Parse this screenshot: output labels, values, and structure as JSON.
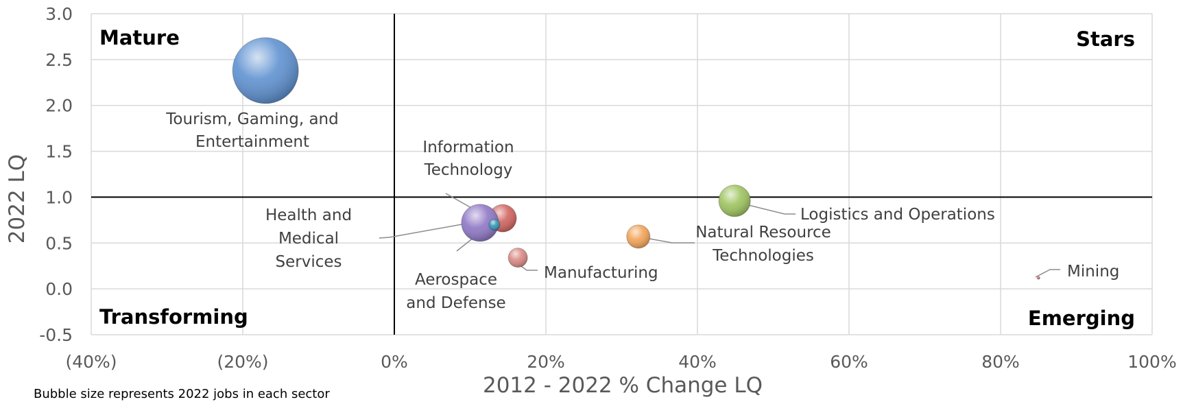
{
  "chart_data": {
    "type": "bubble",
    "xlabel": "2012 - 2022 % Change LQ",
    "ylabel": "2022 LQ",
    "xlim": [
      -0.4,
      1.0
    ],
    "ylim": [
      -0.5,
      3.0
    ],
    "x_ticks": [
      {
        "value": -0.4,
        "label": "(40%)",
        "color": "#ff0000"
      },
      {
        "value": -0.2,
        "label": "(20%)",
        "color": "#ff0000"
      },
      {
        "value": 0.0,
        "label": "0%",
        "color": "#595959"
      },
      {
        "value": 0.2,
        "label": "20%",
        "color": "#595959"
      },
      {
        "value": 0.4,
        "label": "40%",
        "color": "#595959"
      },
      {
        "value": 0.6,
        "label": "60%",
        "color": "#595959"
      },
      {
        "value": 0.8,
        "label": "80%",
        "color": "#595959"
      },
      {
        "value": 1.0,
        "label": "100%",
        "color": "#595959"
      }
    ],
    "y_ticks": [
      {
        "value": 3.0,
        "label": "3.0"
      },
      {
        "value": 2.5,
        "label": "2.5"
      },
      {
        "value": 2.0,
        "label": "2.0"
      },
      {
        "value": 1.5,
        "label": "1.5"
      },
      {
        "value": 1.0,
        "label": "1.0"
      },
      {
        "value": 0.5,
        "label": "0.5"
      },
      {
        "value": 0.0,
        "label": "0.0"
      },
      {
        "value": -0.5,
        "label": "-0.5"
      }
    ],
    "grid": true,
    "reference_lines": {
      "x": 0.0,
      "y": 1.0
    },
    "quadrants": [
      {
        "label": "Mature",
        "position": "top-left"
      },
      {
        "label": "Stars",
        "position": "top-right"
      },
      {
        "label": "Transforming",
        "position": "bottom-left"
      },
      {
        "label": "Emerging",
        "position": "bottom-right"
      }
    ],
    "series": [
      {
        "name": "Tourism, Gaming, and Entertainment",
        "label_lines": [
          "Tourism, Gaming, and",
          "Entertainment"
        ],
        "x": -0.17,
        "y": 2.38,
        "size": 48,
        "color": "#5b8fd0"
      },
      {
        "name": "Information Technology",
        "label_lines": [
          "Information",
          "Technology"
        ],
        "x": 0.143,
        "y": 0.77,
        "size": 20,
        "color": "#d0605c"
      },
      {
        "name": "Health and Medical Services",
        "label_lines": [
          "Health and",
          "Medical",
          "Services"
        ],
        "x": 0.113,
        "y": 0.72,
        "size": 27,
        "color": "#8c74c4"
      },
      {
        "name": "Aerospace and Defense",
        "label_lines": [
          "Aerospace",
          "and Defense"
        ],
        "x": 0.132,
        "y": 0.7,
        "size": 8,
        "color": "#2e8fb3"
      },
      {
        "name": "Manufacturing",
        "label_lines": [
          "Manufacturing"
        ],
        "x": 0.163,
        "y": 0.34,
        "size": 14,
        "color": "#d8857f"
      },
      {
        "name": "Natural Resource Technologies",
        "label_lines": [
          "Natural Resource",
          "Technologies"
        ],
        "x": 0.322,
        "y": 0.57,
        "size": 17,
        "color": "#f2a152"
      },
      {
        "name": "Logistics and Operations",
        "label_lines": [
          "Logistics and Operations"
        ],
        "x": 0.449,
        "y": 0.96,
        "size": 23,
        "color": "#9bc25a"
      },
      {
        "name": "Mining",
        "label_lines": [
          "Mining"
        ],
        "x": 0.85,
        "y": 0.12,
        "size": 2,
        "color": "#d0605c"
      }
    ],
    "note": "Bubble size represents 2022 jobs in each sector"
  }
}
